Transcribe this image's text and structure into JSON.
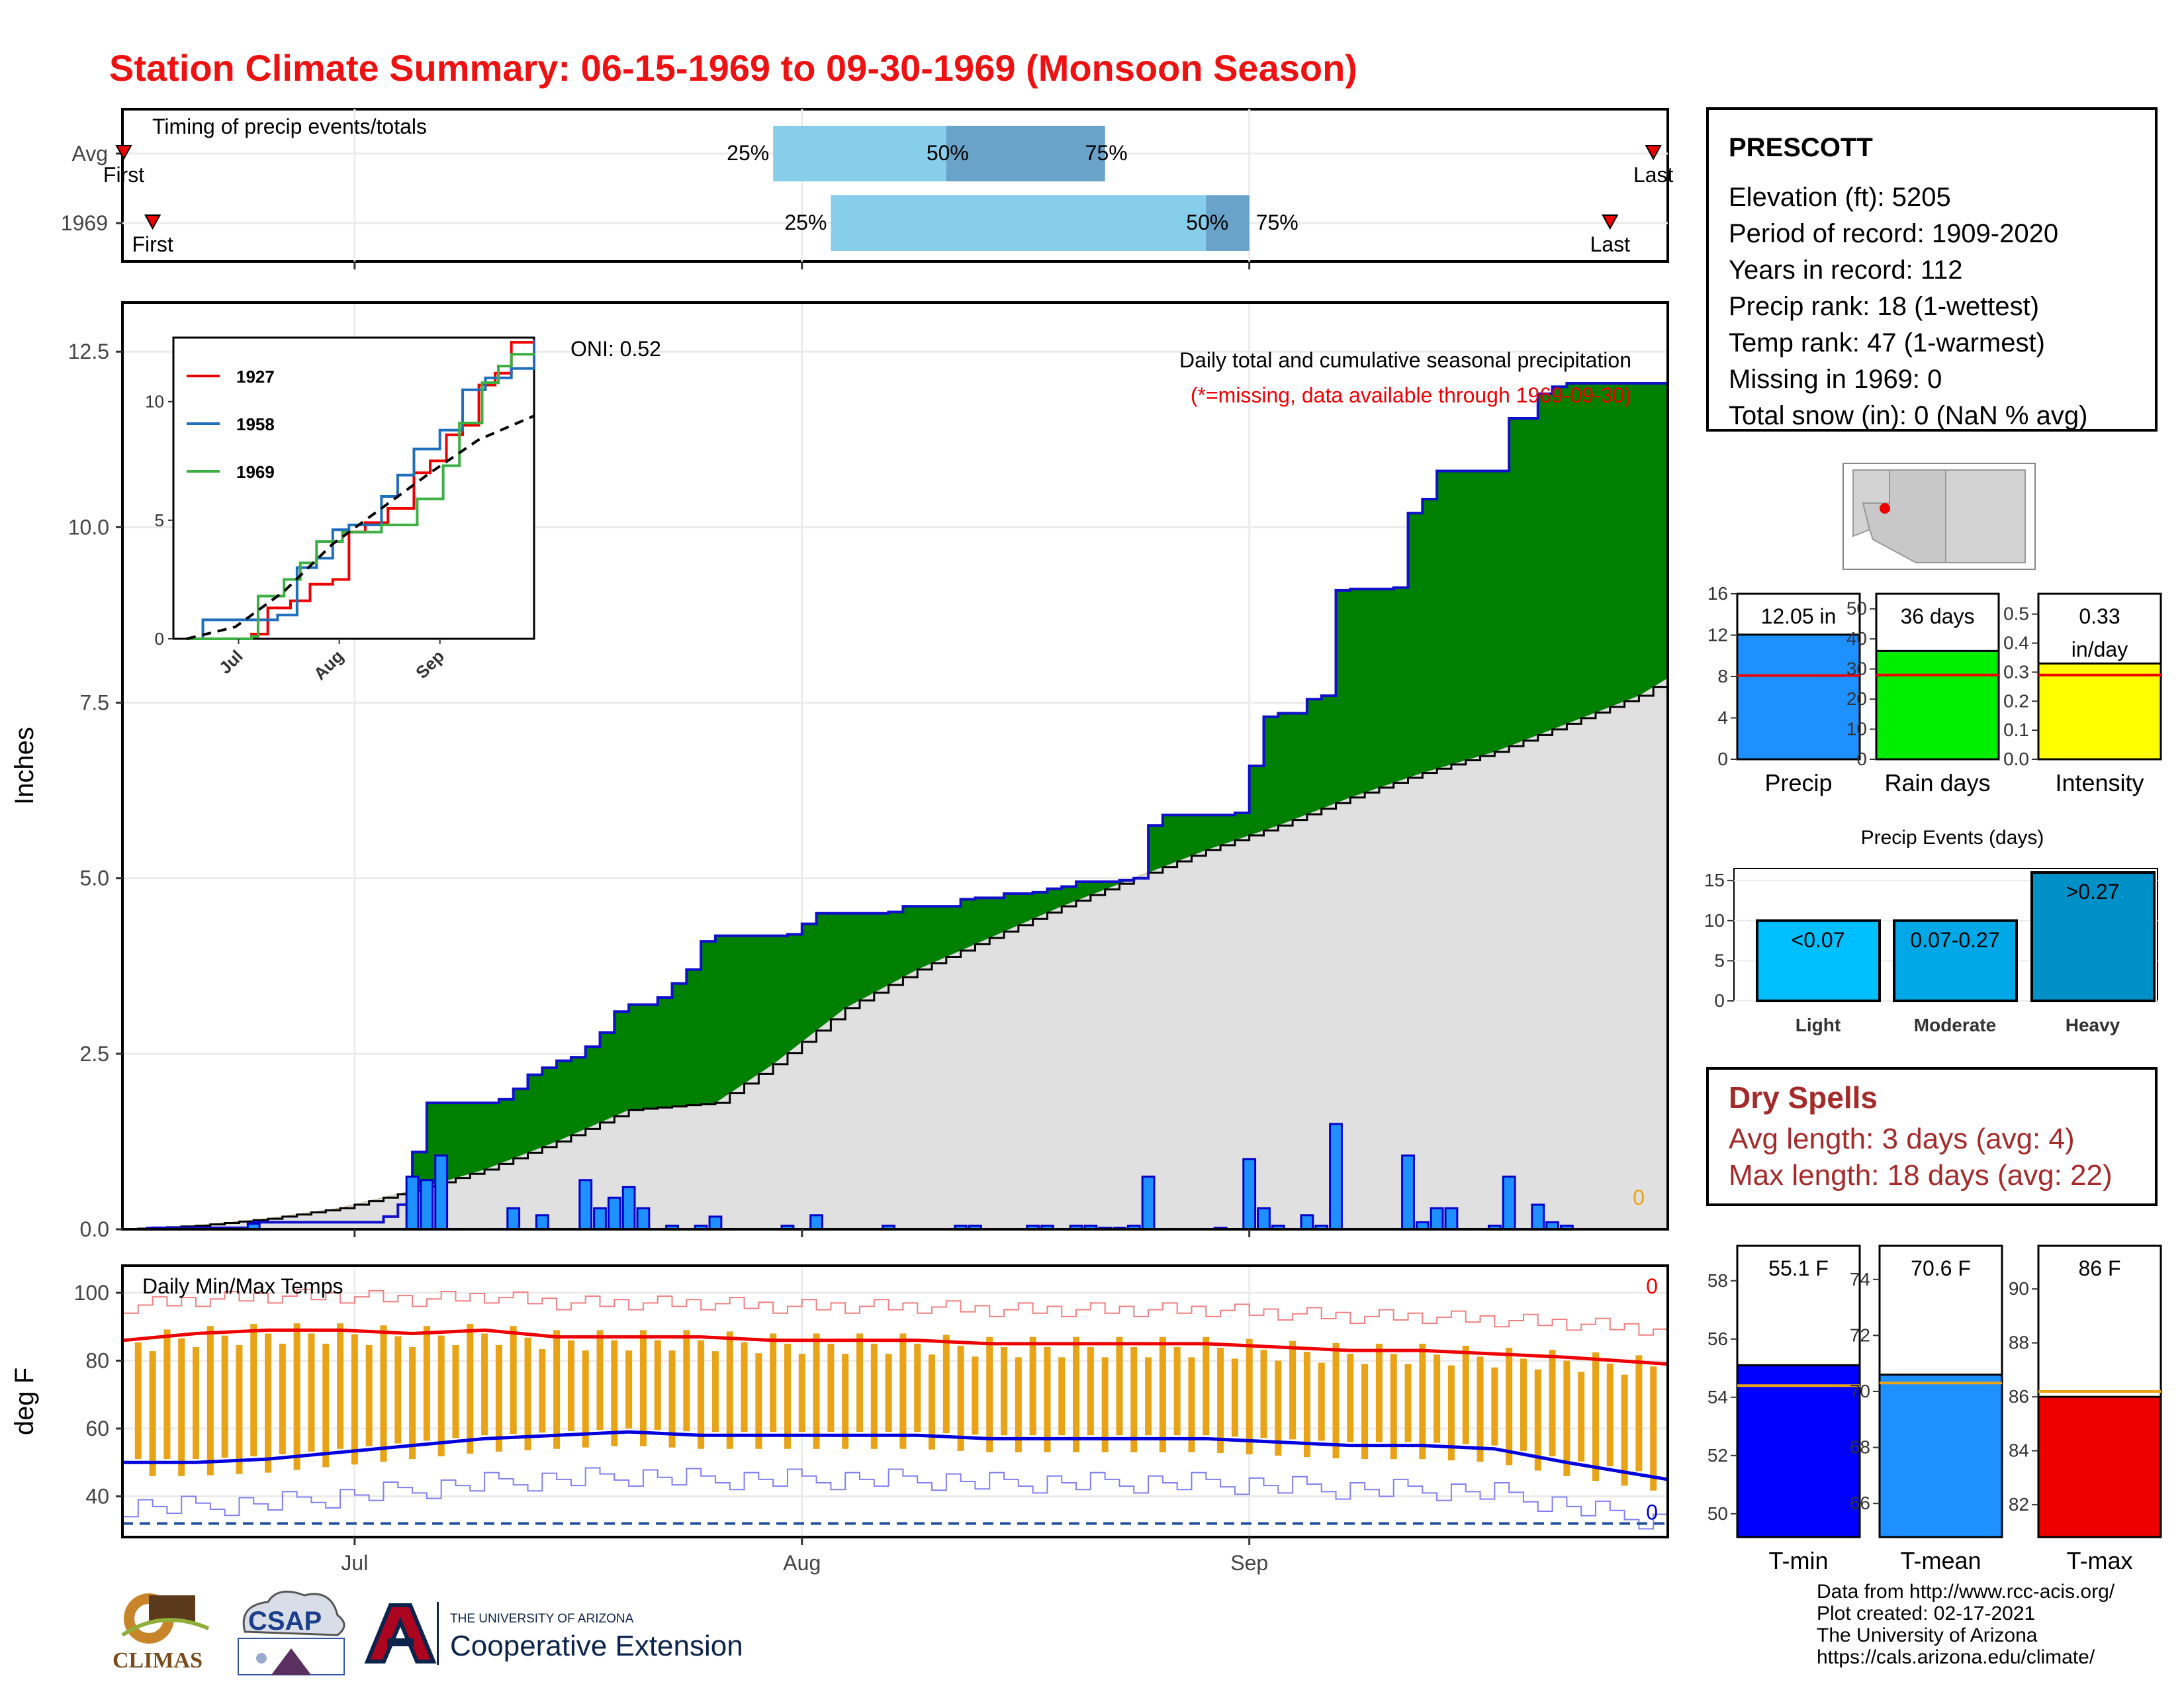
{
  "title": "Station Climate Summary: 06-15-1969 to 09-30-1969 (Monsoon Season)",
  "colors": {
    "title": "#ee1111",
    "accumulated_above_avg": "#008000",
    "accumulated_below_avg": "#8b5a00",
    "average_fill": "#e0e0e0",
    "daily_bars": "#1e90ff",
    "daily_bars_outline": "#0000cc",
    "temp_bars": "#e8a317",
    "tmax_line": "#ee0000",
    "tmin_line": "#0000dd",
    "light_blue": "#87ceeb",
    "steel_blue": "#6aa3c9"
  },
  "timing_panel": {
    "title": "Timing of precip events/totals",
    "rows": [
      {
        "label": "Avg",
        "first_label": "First",
        "last_label": "Last",
        "p25_label": "25%",
        "p50_label": "50%",
        "p75_label": "75%",
        "first_day": 0,
        "p25_day": 45,
        "p50_day": 57,
        "p75_day": 68,
        "last_day": 106
      },
      {
        "label": "1969",
        "first_label": "First",
        "last_label": "Last",
        "p25_label": "25%",
        "p50_label": "50%",
        "p75_label": "75%",
        "first_day": 2,
        "p25_day": 49,
        "p50_day": 75,
        "p75_day": 78,
        "last_day": 103
      }
    ]
  },
  "main_panel": {
    "ylabel": "Inches",
    "yticks": [
      "0.0",
      "2.5",
      "5.0",
      "7.5",
      "10.0",
      "12.5"
    ],
    "annotation_1": "Daily total and cumulative seasonal precipitation",
    "annotation_2": "(*=missing, data available through 1969-09-30)",
    "oni_label": "ONI: 0.52",
    "missing_count": "0"
  },
  "inset": {
    "yticks": [
      "0",
      "5",
      "10"
    ],
    "xticks": [
      "Jul",
      "Aug",
      "Sep"
    ],
    "legend": [
      {
        "name": "1927",
        "color": "#ee0000"
      },
      {
        "name": "1958",
        "color": "#1f6fbf"
      },
      {
        "name": "1969",
        "color": "#3cb043"
      }
    ]
  },
  "temp_panel": {
    "ylabel": "deg F",
    "title": "Daily Min/Max Temps",
    "yticks": [
      "40",
      "60",
      "80",
      "100"
    ],
    "xticks": [
      "Jul",
      "Aug",
      "Sep"
    ],
    "missing_max": "0",
    "missing_min": "0"
  },
  "station_info": {
    "name": "PRESCOTT",
    "lines": [
      "Elevation (ft): 5205",
      "Period of record: 1909-2020",
      "Years in record: 112",
      "Precip rank: 18 (1-wettest)",
      "Temp rank: 47 (1-warmest)",
      "Missing in 1969: 0",
      "Total snow (in): 0 (NaN % avg)"
    ]
  },
  "summary_bars": [
    {
      "label": "Precip",
      "value_label": "12.05 in",
      "value": 12.05,
      "avg": 8.1,
      "max": 16,
      "ticks": [
        "0",
        "4",
        "8",
        "12",
        "16"
      ],
      "color": "#1e90ff"
    },
    {
      "label": "Rain days",
      "value_label": "36 days",
      "value": 36,
      "avg": 28,
      "max": 55,
      "ticks": [
        "0",
        "10",
        "20",
        "30",
        "40",
        "50"
      ],
      "color": "#00ee00"
    },
    {
      "label": "Intensity",
      "value_label": "0.33 in/day",
      "value": 0.33,
      "avg": 0.29,
      "max": 0.57,
      "ticks": [
        "0.0",
        "0.1",
        "0.2",
        "0.3",
        "0.4",
        "0.5"
      ],
      "color": "#ffff00"
    }
  ],
  "precip_events": {
    "title": "Precip Events (days)",
    "yticks": [
      "0",
      "5",
      "10",
      "15"
    ],
    "categories": [
      "Light",
      "Moderate",
      "Heavy"
    ],
    "bar_labels": [
      "<0.07",
      "0.07-0.27",
      ">0.27"
    ],
    "values": [
      10,
      10,
      16
    ],
    "colors": [
      "#00bfff",
      "#00a8e8",
      "#0090c8"
    ]
  },
  "dry_spells": {
    "title": "Dry Spells",
    "avg_length": "Avg length: 3 days (avg: 4)",
    "max_length": "Max length: 18 days (avg: 22)"
  },
  "temp_bars": [
    {
      "label": "T-min",
      "value_label": "55.1 F",
      "value": 55.1,
      "avg": 54.4,
      "min": 49.2,
      "max": 59.2,
      "ticks": [
        "50",
        "52",
        "54",
        "56",
        "58"
      ],
      "color": "#0000ff"
    },
    {
      "label": "T-mean",
      "value_label": "70.6 F",
      "value": 70.6,
      "avg": 70.3,
      "min": 64.8,
      "max": 75.2,
      "ticks": [
        "66",
        "68",
        "70",
        "72",
        "74"
      ],
      "color": "#1e90ff"
    },
    {
      "label": "T-max",
      "value_label": "86 F",
      "value": 86.0,
      "avg": 86.2,
      "min": 80.8,
      "max": 91.6,
      "ticks": [
        "82",
        "84",
        "86",
        "88",
        "90"
      ],
      "color": "#ee0000"
    }
  ],
  "credits": [
    "Data from http://www.rcc-acis.org/",
    "Plot created: 02-17-2021",
    "The University of Arizona",
    "https://cals.arizona.edu/climate/"
  ],
  "logos": {
    "climas": "CLIMAS",
    "csap": "CSAP",
    "ua_small": "THE UNIVERSITY OF ARIZONA",
    "ua_big": "Cooperative Extension"
  },
  "chart_data": [
    {
      "type": "area",
      "title": "Daily total and cumulative seasonal precipitation",
      "ylabel": "Inches",
      "ylim": [
        0,
        13.2
      ],
      "x_range": [
        "06-15",
        "09-30"
      ],
      "xticks": [
        "Jul",
        "Aug",
        "Sep"
      ],
      "cumulative_1969": [
        [
          0,
          0
        ],
        [
          2,
          0.02
        ],
        [
          8,
          0.02
        ],
        [
          9,
          0.1
        ],
        [
          10,
          0.1
        ],
        [
          11,
          0.1
        ],
        [
          16,
          0.1
        ],
        [
          17,
          0.1
        ],
        [
          18,
          0.18
        ],
        [
          19,
          0.35
        ],
        [
          20,
          1.1
        ],
        [
          21,
          1.8
        ],
        [
          25,
          1.8
        ],
        [
          26,
          1.85
        ],
        [
          27,
          2.0
        ],
        [
          28,
          2.2
        ],
        [
          29,
          2.3
        ],
        [
          30,
          2.4
        ],
        [
          31,
          2.45
        ],
        [
          32,
          2.6
        ],
        [
          33,
          2.8
        ],
        [
          34,
          3.1
        ],
        [
          35,
          3.2
        ],
        [
          37,
          3.3
        ],
        [
          38,
          3.5
        ],
        [
          39,
          3.7
        ],
        [
          40,
          4.1
        ],
        [
          41,
          4.18
        ],
        [
          46,
          4.2
        ],
        [
          47,
          4.35
        ],
        [
          48,
          4.5
        ],
        [
          53,
          4.52
        ],
        [
          54,
          4.6
        ],
        [
          58,
          4.7
        ],
        [
          59,
          4.72
        ],
        [
          61,
          4.78
        ],
        [
          63,
          4.8
        ],
        [
          64,
          4.85
        ],
        [
          65,
          4.88
        ],
        [
          66,
          4.95
        ],
        [
          69,
          4.97
        ],
        [
          70,
          5.0
        ],
        [
          71,
          5.75
        ],
        [
          72,
          5.9
        ],
        [
          77,
          5.93
        ],
        [
          78,
          6.6
        ],
        [
          79,
          7.3
        ],
        [
          80,
          7.35
        ],
        [
          82,
          7.55
        ],
        [
          83,
          7.6
        ],
        [
          84,
          9.1
        ],
        [
          85,
          9.12
        ],
        [
          88,
          9.14
        ],
        [
          89,
          10.2
        ],
        [
          90,
          10.4
        ],
        [
          91,
          10.8
        ],
        [
          95,
          10.8
        ],
        [
          96,
          11.55
        ],
        [
          98,
          11.9
        ],
        [
          99,
          12.0
        ],
        [
          100,
          12.05
        ],
        [
          106,
          12.05
        ],
        [
          107,
          12.05
        ]
      ],
      "average_cumulative": [
        [
          0,
          0
        ],
        [
          5,
          0.05
        ],
        [
          10,
          0.15
        ],
        [
          15,
          0.3
        ],
        [
          20,
          0.55
        ],
        [
          25,
          0.85
        ],
        [
          30,
          1.25
        ],
        [
          35,
          1.7
        ],
        [
          41,
          1.8
        ],
        [
          45,
          2.35
        ],
        [
          50,
          3.15
        ],
        [
          55,
          3.7
        ],
        [
          60,
          4.15
        ],
        [
          65,
          4.6
        ],
        [
          70,
          5.0
        ],
        [
          75,
          5.4
        ],
        [
          80,
          5.75
        ],
        [
          85,
          6.15
        ],
        [
          90,
          6.5
        ],
        [
          95,
          6.8
        ],
        [
          100,
          7.2
        ],
        [
          105,
          7.6
        ],
        [
          107,
          7.85
        ]
      ],
      "daily_precip": [
        [
          2,
          0.02
        ],
        [
          9,
          0.08
        ],
        [
          20,
          0.75
        ],
        [
          21,
          0.7
        ],
        [
          22,
          1.05
        ],
        [
          27,
          0.3
        ],
        [
          29,
          0.2
        ],
        [
          32,
          0.7
        ],
        [
          33,
          0.3
        ],
        [
          34,
          0.45
        ],
        [
          35,
          0.6
        ],
        [
          36,
          0.3
        ],
        [
          38,
          0.05
        ],
        [
          40,
          0.05
        ],
        [
          41,
          0.18
        ],
        [
          46,
          0.05
        ],
        [
          48,
          0.2
        ],
        [
          53,
          0.05
        ],
        [
          58,
          0.05
        ],
        [
          59,
          0.05
        ],
        [
          63,
          0.05
        ],
        [
          64,
          0.05
        ],
        [
          66,
          0.05
        ],
        [
          67,
          0.05
        ],
        [
          68,
          0.02
        ],
        [
          69,
          0.02
        ],
        [
          70,
          0.05
        ],
        [
          71,
          0.75
        ],
        [
          76,
          0.02
        ],
        [
          78,
          1.0
        ],
        [
          79,
          0.3
        ],
        [
          80,
          0.05
        ],
        [
          82,
          0.2
        ],
        [
          83,
          0.05
        ],
        [
          84,
          1.5
        ],
        [
          89,
          1.05
        ],
        [
          90,
          0.1
        ],
        [
          91,
          0.3
        ],
        [
          92,
          0.3
        ],
        [
          95,
          0.05
        ],
        [
          96,
          0.75
        ],
        [
          98,
          0.35
        ],
        [
          99,
          0.1
        ],
        [
          100,
          0.05
        ]
      ]
    },
    {
      "type": "line",
      "title": "Daily Min/Max Temps",
      "ylabel": "deg F",
      "ylim": [
        28,
        108
      ],
      "series": [
        {
          "name": "",
          "values": [
            [
              0,
              86
            ],
            [
              5,
              88
            ],
            [
              10,
              89
            ],
            [
              15,
              89
            ],
            [
              20,
              88
            ],
            [
              25,
              89
            ],
            [
              30,
              87
            ],
            [
              35,
              87
            ],
            [
              40,
              87
            ],
            [
              45,
              86
            ],
            [
              50,
              86
            ],
            [
              55,
              86
            ],
            [
              60,
              85
            ],
            [
              65,
              85
            ],
            [
              70,
              85
            ],
            [
              75,
              85
            ],
            [
              80,
              84
            ],
            [
              85,
              83
            ],
            [
              90,
              83
            ],
            [
              95,
              82
            ],
            [
              100,
              81
            ],
            [
              107,
              79
            ]
          ]
        },
        {
          "name": "",
          "values": [
            [
              0,
              50
            ],
            [
              5,
              50
            ],
            [
              10,
              51
            ],
            [
              15,
              53
            ],
            [
              20,
              55
            ],
            [
              25,
              57
            ],
            [
              30,
              58
            ],
            [
              35,
              59
            ],
            [
              40,
              58
            ],
            [
              45,
              58
            ],
            [
              50,
              58
            ],
            [
              55,
              58
            ],
            [
              60,
              57
            ],
            [
              65,
              57
            ],
            [
              70,
              57
            ],
            [
              75,
              57
            ],
            [
              80,
              56
            ],
            [
              85,
              55
            ],
            [
              90,
              55
            ],
            [
              95,
              54
            ],
            [
              100,
              50
            ],
            [
              107,
              45
            ]
          ]
        }
      ]
    }
  ]
}
